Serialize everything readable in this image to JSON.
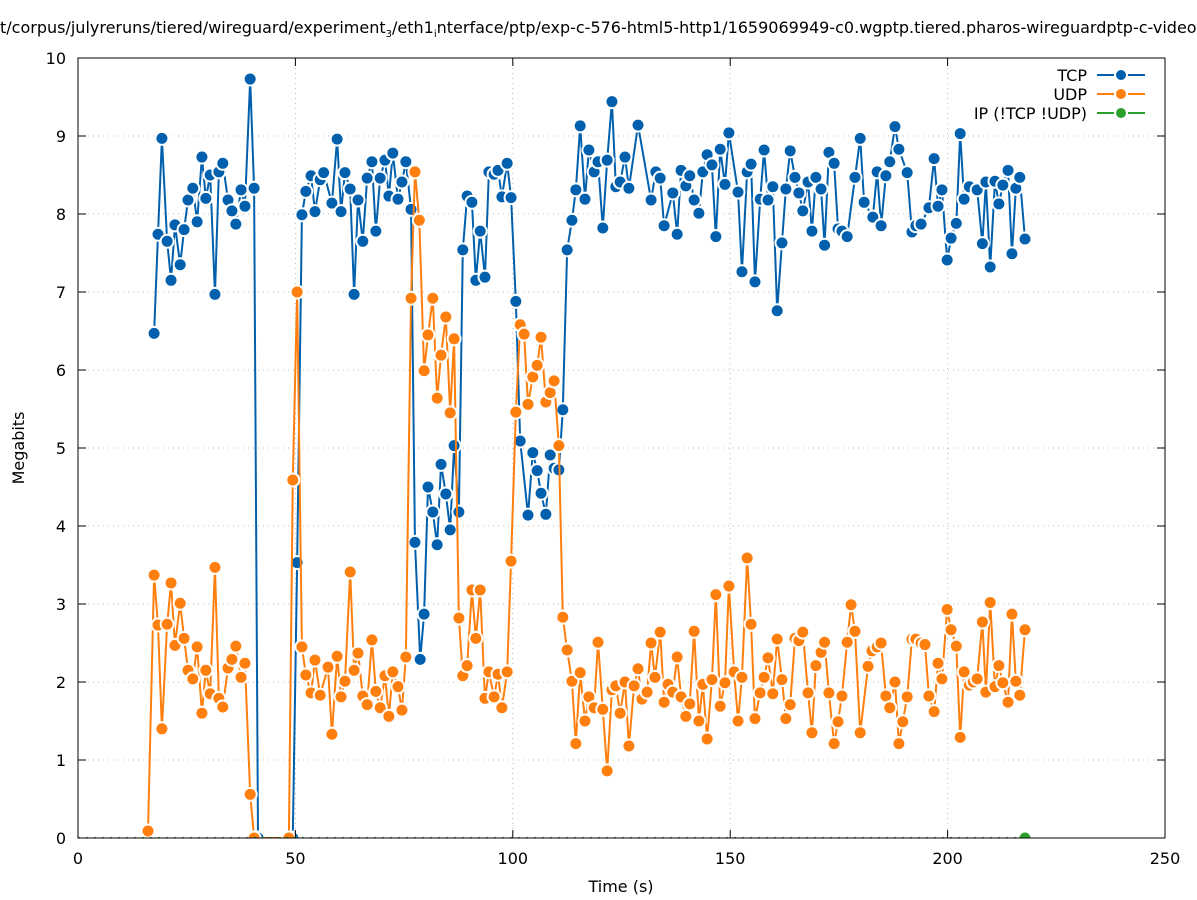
{
  "chart_data": {
    "type": "line",
    "title_parts": [
      "t/corpus/julyreruns/tiered/wireguard/experiment",
      "3",
      "/eth1",
      "i",
      "nterface/ptp/exp-c-576-html5-http1/1659069949-c0.wgptp.tiered.pharos-wireguardptp-c-video"
    ],
    "xlabel": "Time (s)",
    "ylabel": "Megabits",
    "xlim": [
      0,
      250
    ],
    "ylim": [
      0,
      10
    ],
    "xticks": [
      0,
      50,
      100,
      150,
      200,
      250
    ],
    "yticks": [
      0,
      1,
      2,
      3,
      4,
      5,
      6,
      7,
      8,
      9,
      10
    ],
    "grid": true,
    "legend_position": "top-right",
    "series": [
      {
        "name": "TCP",
        "color": "#0060ad",
        "x": [
          17.5,
          18.4,
          19.3,
          20.5,
          21.4,
          22.3,
          23.5,
          24.4,
          25.3,
          26.4,
          27.4,
          28.5,
          29.4,
          30.4,
          31.5,
          32.4,
          33.3,
          34.5,
          35.4,
          36.3,
          37.5,
          38.4,
          39.6,
          40.5,
          41.4,
          49.4,
          50.4,
          51.5,
          52.4,
          53.6,
          54.5,
          55.7,
          56.5,
          58.4,
          59.6,
          60.5,
          61.4,
          62.6,
          63.5,
          64.4,
          65.5,
          66.5,
          67.6,
          68.5,
          69.5,
          70.6,
          71.5,
          72.4,
          73.6,
          74.5,
          75.4,
          76.6,
          77.5,
          78.7,
          79.6,
          80.5,
          81.6,
          82.6,
          83.5,
          84.6,
          85.6,
          86.5,
          87.6,
          88.5,
          89.5,
          90.6,
          91.5,
          92.5,
          93.6,
          94.5,
          95.7,
          96.6,
          97.5,
          98.7,
          99.6,
          100.7,
          101.7,
          103.5,
          104.6,
          105.6,
          106.5,
          107.6,
          108.6,
          109.5,
          110.6,
          111.5,
          112.5,
          113.6,
          114.5,
          115.5,
          116.6,
          117.5,
          118.7,
          119.6,
          120.7,
          121.7,
          122.8,
          123.7,
          124.7,
          125.8,
          126.7,
          128.8,
          131.8,
          132.9,
          133.9,
          134.8,
          136.8,
          137.8,
          138.7,
          139.8,
          140.7,
          141.7,
          142.8,
          143.7,
          144.7,
          145.8,
          146.7,
          147.7,
          148.8,
          149.7,
          151.8,
          152.7,
          153.9,
          154.8,
          155.7,
          156.9,
          157.8,
          158.7,
          159.8,
          160.8,
          161.9,
          162.8,
          163.8,
          164.9,
          165.8,
          166.7,
          167.9,
          168.8,
          169.7,
          170.9,
          171.7,
          172.7,
          173.9,
          174.8,
          175.7,
          176.9,
          178.7,
          179.9,
          180.8,
          182.8,
          183.8,
          184.7,
          185.8,
          186.7,
          187.9,
          188.8,
          190.7,
          191.8,
          192.7,
          193.9,
          195.7,
          196.9,
          197.8,
          198.7,
          199.9,
          200.8,
          202.0,
          202.9,
          203.8,
          205.0,
          206.8,
          208.0,
          208.8,
          209.8,
          210.9,
          211.8,
          212.7,
          213.9,
          214.8,
          215.7,
          216.6,
          217.8
        ],
        "values": [
          6.47,
          7.74,
          8.97,
          7.65,
          7.15,
          7.86,
          7.35,
          7.8,
          8.18,
          8.33,
          7.9,
          8.73,
          8.2,
          8.5,
          6.97,
          8.54,
          8.65,
          8.18,
          8.04,
          7.87,
          8.31,
          8.1,
          9.73,
          8.33,
          0,
          0,
          3.53,
          7.99,
          8.29,
          8.49,
          8.03,
          8.44,
          8.53,
          8.14,
          8.96,
          8.03,
          8.53,
          8.32,
          6.97,
          8.18,
          7.65,
          8.46,
          8.67,
          7.78,
          8.46,
          8.69,
          8.23,
          8.78,
          8.19,
          8.41,
          8.67,
          8.06,
          3.79,
          2.29,
          2.87,
          4.5,
          4.18,
          3.76,
          4.79,
          4.41,
          3.95,
          5.03,
          4.18,
          7.54,
          8.23,
          8.15,
          7.15,
          7.78,
          7.19,
          8.54,
          8.51,
          8.56,
          8.22,
          8.65,
          8.21,
          6.88,
          5.09,
          4.14,
          4.94,
          4.71,
          4.42,
          4.15,
          4.91,
          4.74,
          4.72,
          5.49,
          7.54,
          7.92,
          8.31,
          9.13,
          8.19,
          8.82,
          8.54,
          8.67,
          7.82,
          8.69,
          9.44,
          8.35,
          8.41,
          8.73,
          8.33,
          9.14,
          8.18,
          8.54,
          8.46,
          7.85,
          8.27,
          7.74,
          8.56,
          8.36,
          8.49,
          8.18,
          8.01,
          8.54,
          8.76,
          8.63,
          7.71,
          8.83,
          8.38,
          9.04,
          8.28,
          7.26,
          8.54,
          8.64,
          7.13,
          8.19,
          8.82,
          8.18,
          8.35,
          6.76,
          7.63,
          8.32,
          8.81,
          8.47,
          8.27,
          8.04,
          8.41,
          7.78,
          8.47,
          8.32,
          7.6,
          8.79,
          8.65,
          7.81,
          7.78,
          7.71,
          8.47,
          8.97,
          8.15,
          7.96,
          8.54,
          7.85,
          8.49,
          8.67,
          9.12,
          8.83,
          8.53,
          7.77,
          7.85,
          7.87,
          8.08,
          8.71,
          8.1,
          8.31,
          7.41,
          7.69,
          7.88,
          9.03,
          8.19,
          8.35,
          8.31,
          7.62,
          8.41,
          7.32,
          8.42,
          8.13,
          8.37,
          8.56,
          7.49,
          8.33,
          8.47,
          7.68
        ]
      },
      {
        "name": "UDP",
        "color": "#ff7f0e",
        "x": [
          16.1,
          17.5,
          18.4,
          19.3,
          20.5,
          21.4,
          22.3,
          23.5,
          24.4,
          25.3,
          26.4,
          27.4,
          28.5,
          29.4,
          30.4,
          31.5,
          32.4,
          33.3,
          34.5,
          35.4,
          36.3,
          37.5,
          38.4,
          39.6,
          40.5,
          48.5,
          49.4,
          50.4,
          51.5,
          52.4,
          53.6,
          54.5,
          55.7,
          57.5,
          58.4,
          59.6,
          60.5,
          61.4,
          62.6,
          63.5,
          64.4,
          65.5,
          66.5,
          67.6,
          68.5,
          69.5,
          70.6,
          71.5,
          72.4,
          73.6,
          74.5,
          75.4,
          76.6,
          77.5,
          78.5,
          79.6,
          80.5,
          81.6,
          82.6,
          83.5,
          84.6,
          85.6,
          86.5,
          87.6,
          88.5,
          89.5,
          90.6,
          91.5,
          92.5,
          93.6,
          94.5,
          95.7,
          96.6,
          97.5,
          98.7,
          99.6,
          100.7,
          101.7,
          102.6,
          103.5,
          104.6,
          105.6,
          106.5,
          107.6,
          108.6,
          109.5,
          110.6,
          111.5,
          112.5,
          113.6,
          114.5,
          115.5,
          116.6,
          117.5,
          118.7,
          119.6,
          120.7,
          121.7,
          122.8,
          123.7,
          124.7,
          125.8,
          126.7,
          127.9,
          128.8,
          129.7,
          130.9,
          131.8,
          132.7,
          133.9,
          134.8,
          135.7,
          136.8,
          137.8,
          138.7,
          139.8,
          140.7,
          141.7,
          142.8,
          143.7,
          144.7,
          145.8,
          146.7,
          147.7,
          148.8,
          149.7,
          150.9,
          151.8,
          152.7,
          153.9,
          154.8,
          155.7,
          156.9,
          157.8,
          158.7,
          159.8,
          160.8,
          161.9,
          162.8,
          163.8,
          164.9,
          165.8,
          166.7,
          167.9,
          168.8,
          169.7,
          170.9,
          171.7,
          172.7,
          173.9,
          174.8,
          175.7,
          176.9,
          177.8,
          178.7,
          179.9,
          181.7,
          182.6,
          183.8,
          184.7,
          185.8,
          186.7,
          187.9,
          188.8,
          189.7,
          190.7,
          191.8,
          192.7,
          193.9,
          194.8,
          195.7,
          196.9,
          197.8,
          198.7,
          199.9,
          200.8,
          202.0,
          202.9,
          203.8,
          205.0,
          205.9,
          206.8,
          208.0,
          208.8,
          209.8,
          210.9,
          211.8,
          212.7,
          213.9,
          214.8,
          215.7,
          216.6,
          217.8
        ],
        "values": [
          0.09,
          3.37,
          2.73,
          1.4,
          2.74,
          3.27,
          2.47,
          3.01,
          2.56,
          2.15,
          2.04,
          2.45,
          1.6,
          2.15,
          1.85,
          3.47,
          1.79,
          1.68,
          2.18,
          2.29,
          2.46,
          2.06,
          2.24,
          0.56,
          0,
          0,
          4.59,
          7.0,
          2.45,
          2.09,
          1.86,
          2.28,
          1.83,
          2.19,
          1.33,
          2.33,
          1.81,
          2.01,
          3.41,
          2.15,
          2.37,
          1.82,
          1.71,
          2.54,
          1.88,
          1.67,
          2.08,
          1.56,
          2.13,
          1.94,
          1.64,
          2.32,
          6.92,
          8.54,
          7.92,
          5.99,
          6.45,
          6.92,
          5.64,
          6.19,
          6.68,
          5.45,
          6.4,
          2.82,
          2.08,
          2.21,
          3.18,
          2.56,
          3.18,
          1.79,
          2.13,
          1.81,
          2.1,
          1.67,
          2.13,
          3.55,
          5.46,
          6.58,
          6.46,
          5.56,
          5.91,
          6.06,
          6.42,
          5.59,
          5.71,
          5.86,
          5.03,
          2.83,
          2.41,
          2.01,
          1.21,
          2.12,
          1.5,
          1.81,
          1.67,
          2.51,
          1.65,
          0.86,
          1.9,
          1.95,
          1.6,
          2.0,
          1.18,
          1.95,
          2.17,
          1.78,
          1.87,
          2.5,
          2.06,
          2.64,
          1.74,
          1.97,
          1.87,
          2.32,
          1.81,
          1.56,
          1.72,
          2.65,
          1.5,
          1.97,
          1.27,
          2.03,
          3.12,
          1.69,
          1.99,
          3.23,
          2.13,
          1.5,
          2.06,
          3.59,
          2.74,
          1.53,
          1.86,
          2.06,
          2.31,
          1.85,
          2.55,
          2.03,
          1.53,
          1.71,
          2.56,
          2.53,
          2.64,
          1.86,
          1.35,
          2.21,
          2.38,
          2.51,
          1.86,
          1.21,
          1.49,
          1.82,
          2.51,
          2.99,
          2.65,
          1.35,
          2.2,
          2.4,
          2.45,
          2.5,
          1.82,
          1.67,
          2.0,
          1.21,
          1.49,
          1.81,
          2.55,
          2.55,
          2.5,
          2.48,
          1.82,
          1.62,
          2.24,
          2.04,
          2.93,
          2.67,
          2.46,
          1.29,
          2.13,
          1.96,
          2.0,
          2.04,
          2.77,
          1.87,
          3.02,
          1.94,
          2.21,
          1.99,
          1.74,
          2.87,
          2.01,
          1.83,
          2.67
        ]
      },
      {
        "name": "IP (!TCP  !UDP)",
        "color": "#2ca02c",
        "x": [
          0,
          217.8
        ],
        "values": [
          0,
          0
        ]
      }
    ]
  }
}
